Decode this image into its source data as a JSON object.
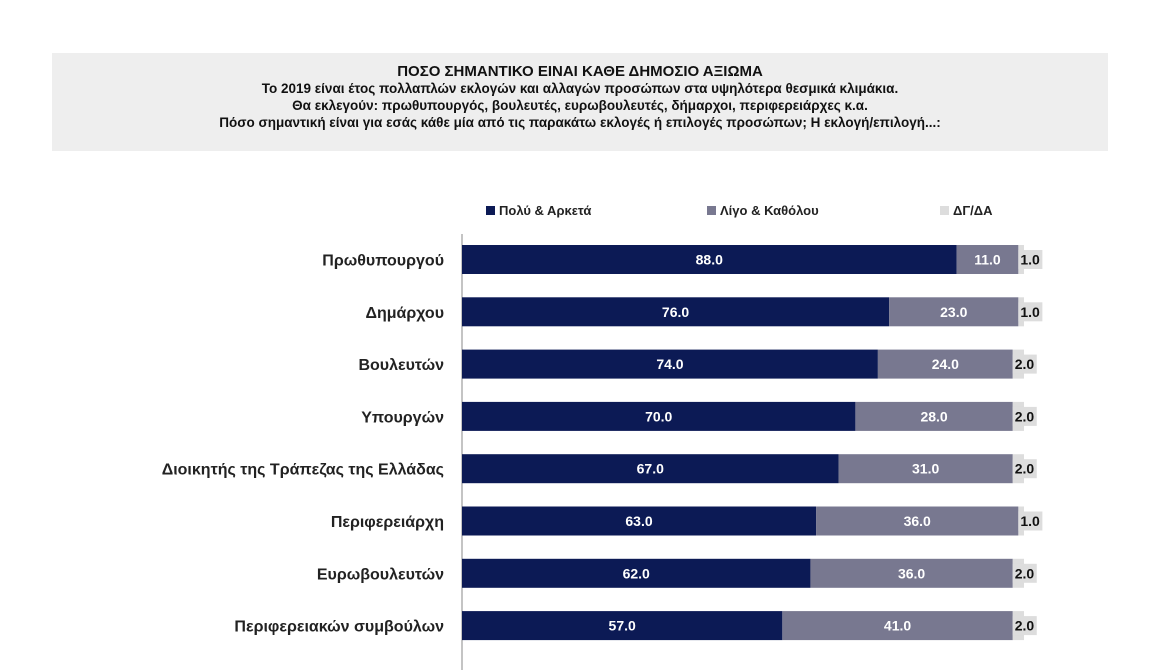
{
  "header": {
    "title": "ΠΟΣΟ ΣΗΜΑΝΤΙΚΟ ΕΙΝΑΙ ΚΑΘΕ ΔΗΜΟΣΙΟ ΑΞΙΩΜΑ",
    "line1": "Το 2019 είναι έτος πολλαπλών εκλογών και αλλαγών προσώπων στα υψηλότερα θεσμικά κλιμάκια.",
    "line2": "Θα εκλεγούν: πρωθυπουργός, βουλευτές, ευρωβουλευτές, δήμαρχοι, περιφερειάρχες κ.α.",
    "line3": "Πόσο σημαντική είναι για εσάς κάθε μία από τις παρακάτω εκλογές ή επιλογές προσώπων; Η εκλογή/επιλογή...:"
  },
  "colors": {
    "series1": "#0c1a55",
    "series2": "#787890",
    "series3": "#dddddd",
    "axis": "#888888"
  },
  "chart_data": {
    "type": "bar",
    "orientation": "horizontal",
    "stacked": true,
    "xlim": [
      0,
      100
    ],
    "legend_position": "top",
    "categories": [
      "Πρωθυπουργού",
      "Δημάρχου",
      "Βουλευτών",
      "Υπουργών",
      "Διοικητής της Τράπεζας της Ελλάδας",
      "Περιφερειάρχη",
      "Ευρωβουλευτών",
      "Περιφερειακών συμβούλων"
    ],
    "series": [
      {
        "name": "Πολύ & Αρκετά",
        "values": [
          88.0,
          76.0,
          74.0,
          70.0,
          67.0,
          63.0,
          62.0,
          57.0
        ]
      },
      {
        "name": "Λίγο & Καθόλου",
        "values": [
          11.0,
          23.0,
          24.0,
          28.0,
          31.0,
          36.0,
          36.0,
          41.0
        ]
      },
      {
        "name": "ΔΓ/ΔΑ",
        "values": [
          1.0,
          1.0,
          2.0,
          2.0,
          2.0,
          1.0,
          2.0,
          2.0
        ]
      }
    ]
  }
}
